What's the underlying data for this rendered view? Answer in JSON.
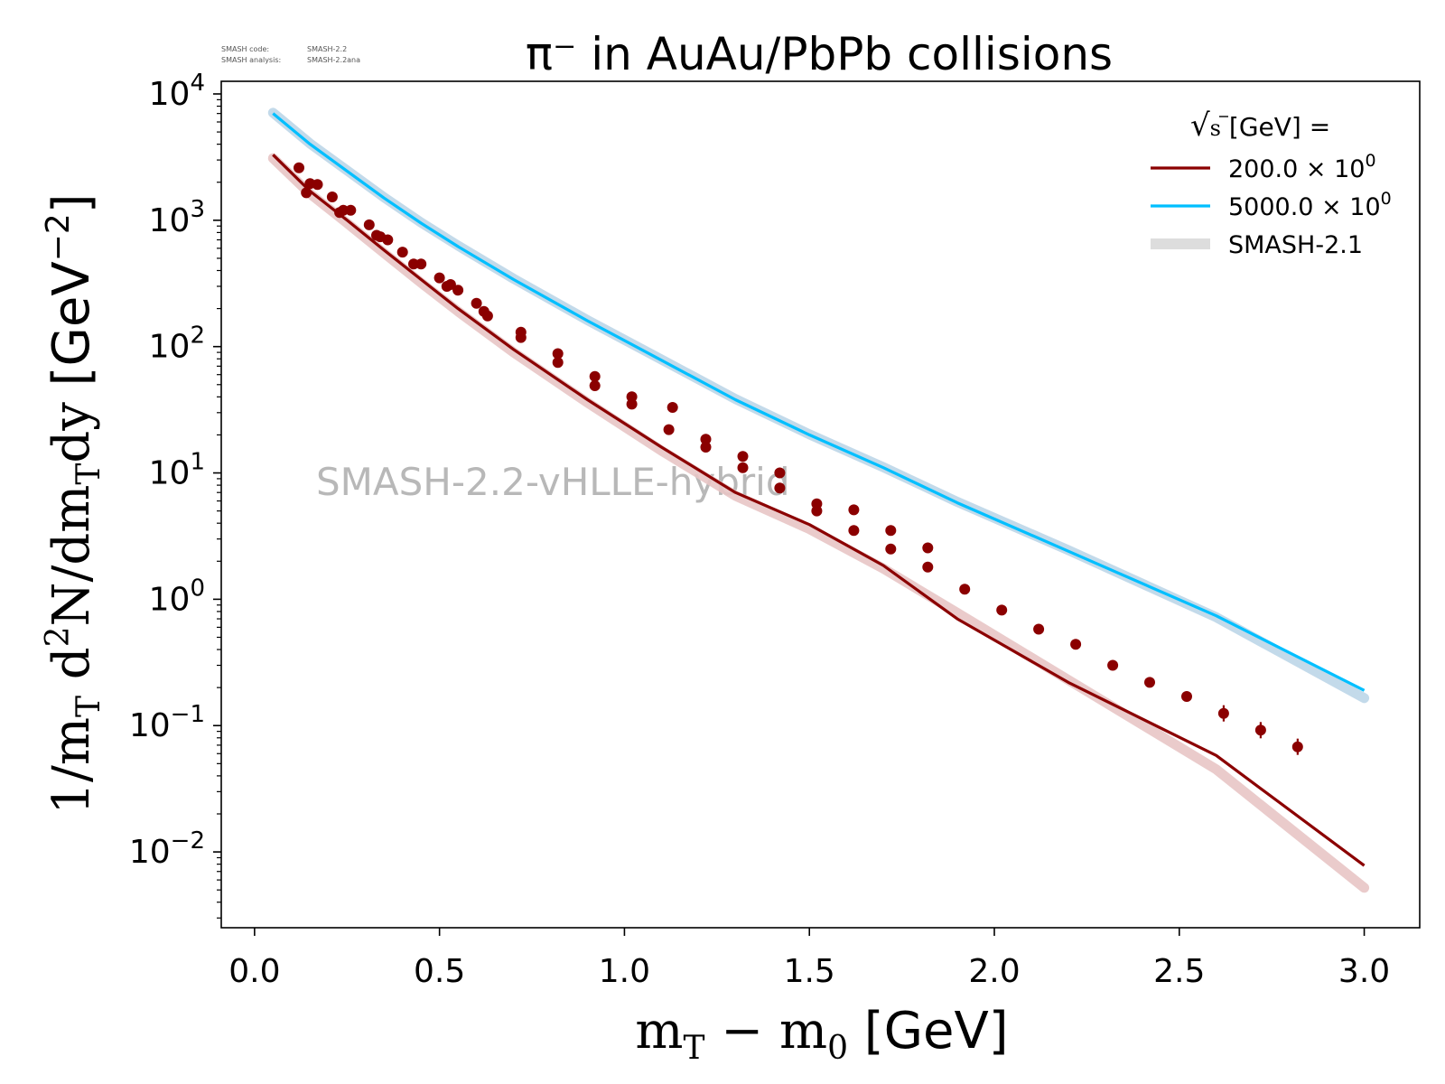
{
  "meta": {
    "code_label": "SMASH code:",
    "code_value": "SMASH-2.2",
    "analysis_label": "SMASH analysis:",
    "analysis_value": "SMASH-2.2ana"
  },
  "watermark": "SMASH-2.2-vHLLE-hybrid",
  "chart_data": {
    "type": "line",
    "title": "π⁻ in AuAu/PbPb collisions",
    "xlabel": {
      "m": "m",
      "sub_T": "T",
      "minus": " − m",
      "sub_0": "0",
      "unit": " [GeV]"
    },
    "ylabel": {
      "prefix": "1/m",
      "sub_T": "T",
      "d": " d",
      "sup_2": "2",
      "mid": "N/dm",
      "sub_T2": "T",
      "tail": "dy",
      "unit_open": " [GeV",
      "unit_sup": "−2",
      "unit_close": "]"
    },
    "xlim": [
      -0.09,
      3.15
    ],
    "ylim_log10": [
      -2.6,
      4.1
    ],
    "y_scale": "log",
    "x_ticks": [
      "0.0",
      "0.5",
      "1.0",
      "1.5",
      "2.0",
      "2.5",
      "3.0"
    ],
    "x_tick_values": [
      0.0,
      0.5,
      1.0,
      1.5,
      2.0,
      2.5,
      3.0
    ],
    "y_tick_exponents": [
      "4",
      "3",
      "2",
      "1",
      "0",
      "−1",
      "−2"
    ],
    "y_tick_values_log10": [
      4,
      3,
      2,
      1,
      0,
      -1,
      -2
    ],
    "y_tick_base": "10",
    "legend": {
      "title_sqrt": "√",
      "title_s": "s",
      "title_rest": "  [GeV] =",
      "placement": "top-right",
      "entries": [
        {
          "label": "200.0 × 10",
          "exp": "0",
          "color": "#8b0000"
        },
        {
          "label": "5000.0 × 10",
          "exp": "0",
          "color": "#00bfff"
        },
        {
          "label": "SMASH-2.1",
          "exp": "",
          "color": "#dddddd"
        }
      ]
    },
    "series": [
      {
        "name": "200.0 × 10⁰",
        "color": "#8b0000",
        "x": [
          0.05,
          0.15,
          0.25,
          0.35,
          0.45,
          0.55,
          0.7,
          0.9,
          1.1,
          1.3,
          1.5,
          1.7,
          1.9,
          2.2,
          2.6,
          3.0
        ],
        "y": [
          3300,
          1700,
          1000,
          580,
          340,
          200,
          95,
          38,
          16,
          7.0,
          3.9,
          1.85,
          0.7,
          0.22,
          0.058,
          0.0078
        ]
      },
      {
        "name": "5000.0 × 10⁰",
        "color": "#00bfff",
        "x": [
          0.05,
          0.15,
          0.25,
          0.35,
          0.45,
          0.55,
          0.7,
          0.9,
          1.1,
          1.3,
          1.5,
          1.7,
          1.9,
          2.2,
          2.6,
          3.0
        ],
        "y": [
          7000,
          4000,
          2450,
          1500,
          950,
          620,
          340,
          160,
          78,
          38,
          20,
          11,
          5.8,
          2.4,
          0.74,
          0.19
        ]
      }
    ],
    "reference_bands": [
      {
        "name": "SMASH-2.1",
        "color": "#e8c5c5",
        "x": [
          0.05,
          0.15,
          0.25,
          0.35,
          0.45,
          0.55,
          0.7,
          0.9,
          1.1,
          1.3,
          1.5,
          1.7,
          1.9,
          2.2,
          2.6,
          3.0
        ],
        "y": [
          3100,
          1620,
          950,
          550,
          320,
          190,
          90,
          36,
          15,
          6.6,
          3.6,
          1.75,
          0.78,
          0.23,
          0.045,
          0.0052
        ]
      },
      {
        "name": "SMASH-2.1",
        "color": "#bcd6e8",
        "x": [
          0.05,
          0.15,
          0.25,
          0.35,
          0.45,
          0.55,
          0.7,
          0.9,
          1.1,
          1.3,
          1.5,
          1.7,
          1.9,
          2.2,
          2.6,
          3.0
        ],
        "y": [
          7100,
          4050,
          2480,
          1520,
          960,
          630,
          345,
          162,
          79,
          38.5,
          20.2,
          11.1,
          5.9,
          2.45,
          0.72,
          0.165
        ]
      }
    ],
    "data_points": {
      "color": "#8b0000",
      "x": [
        0.12,
        0.14,
        0.15,
        0.17,
        0.21,
        0.23,
        0.24,
        0.26,
        0.31,
        0.33,
        0.34,
        0.36,
        0.4,
        0.43,
        0.45,
        0.5,
        0.52,
        0.53,
        0.55,
        0.6,
        0.62,
        0.63,
        0.72,
        0.72,
        0.82,
        0.82,
        0.92,
        0.92,
        1.02,
        1.02,
        1.12,
        1.13,
        1.22,
        1.22,
        1.32,
        1.32,
        1.42,
        1.42,
        1.52,
        1.52,
        1.62,
        1.62,
        1.72,
        1.72,
        1.82,
        1.82,
        1.92,
        2.02,
        2.12,
        2.22,
        2.32,
        2.42,
        2.52,
        2.62,
        2.72,
        2.82
      ],
      "y": [
        2600,
        1650,
        1950,
        1920,
        1530,
        1150,
        1200,
        1200,
        920,
        760,
        740,
        700,
        560,
        450,
        450,
        350,
        300,
        310,
        280,
        220,
        190,
        175,
        130,
        118,
        88,
        75,
        58,
        49,
        40,
        35,
        22,
        33,
        18.5,
        16,
        13.5,
        11,
        10,
        7.6,
        5.7,
        5.0,
        5.1,
        3.5,
        3.5,
        2.5,
        1.8,
        2.55,
        1.2,
        0.82,
        0.58,
        0.44,
        0.3,
        0.22,
        0.17,
        0.125,
        0.092,
        0.068
      ]
    }
  }
}
